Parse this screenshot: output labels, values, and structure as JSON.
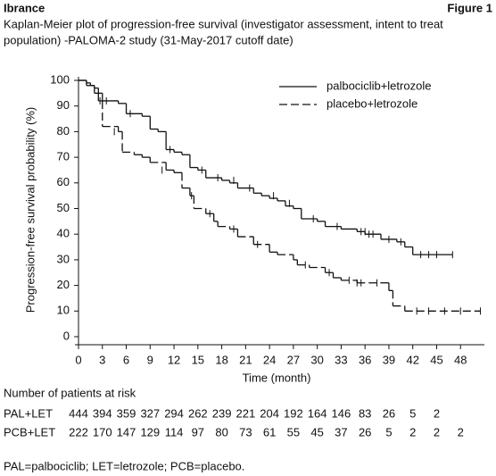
{
  "header": {
    "drug": "Ibrance",
    "figure": "Figure 1"
  },
  "chart_data": {
    "type": "km",
    "title": "Kaplan-Meier plot of progression-free survival (investigator assessment, intent to treat",
    "subtitle": "population) -PALOMA-2 study (31-May-2017 cutoff date)",
    "y_label": "Progression-free survival probability (%)",
    "x_label": "Time (month)",
    "xlim": [
      0,
      51
    ],
    "ylim": [
      0,
      100
    ],
    "xticks": [
      0,
      3,
      6,
      9,
      12,
      15,
      18,
      21,
      24,
      27,
      30,
      33,
      36,
      39,
      42,
      45,
      48
    ],
    "yticks": [
      0,
      10,
      20,
      30,
      40,
      50,
      60,
      70,
      80,
      90,
      100
    ],
    "legend": "upper right",
    "series": [
      {
        "name": "palbociclib+letrozole",
        "color": "#111111",
        "dash": false,
        "x": [
          0,
          1,
          1.5,
          2,
          2.5,
          3,
          5,
          6,
          8,
          9,
          10,
          11,
          12,
          13,
          14,
          15,
          16,
          18,
          19,
          20,
          22,
          23,
          24,
          25,
          26,
          27,
          28,
          30,
          31,
          33,
          35,
          36,
          38,
          40,
          41,
          42,
          47
        ],
        "values": [
          100,
          99,
          98,
          97,
          95,
          92,
          91,
          87,
          86,
          81,
          80,
          73,
          72,
          71,
          66,
          65,
          62,
          61,
          60,
          58,
          56,
          55,
          54,
          53,
          51,
          50,
          46,
          45,
          43,
          42,
          41,
          40,
          38,
          37,
          35,
          32,
          32
        ],
        "censored_x": [
          3.5,
          6.5,
          11.5,
          15.5,
          17.5,
          19.5,
          21.5,
          24.5,
          26.5,
          29.5,
          32.5,
          35.5,
          36,
          36.5,
          37,
          39,
          40.5,
          43,
          44,
          45,
          47
        ],
        "censored_values": [
          92,
          87,
          73,
          65,
          62,
          61,
          58,
          55,
          52,
          46,
          43,
          41,
          41,
          40,
          40,
          38,
          37,
          32,
          32,
          32,
          32
        ]
      },
      {
        "name": "placebo+letrozole",
        "color": "#111111",
        "dash": true,
        "x": [
          0,
          1,
          2,
          2.5,
          3,
          5,
          5.5,
          7,
          8,
          9,
          11,
          12,
          13,
          14,
          14.5,
          16,
          17,
          17.5,
          19,
          20,
          22,
          24,
          25,
          27,
          27.5,
          29,
          31,
          32,
          33,
          35,
          38,
          39,
          39.5,
          41,
          50.5
        ],
        "values": [
          100,
          98,
          95,
          92,
          82,
          80,
          72,
          71,
          70,
          68,
          65,
          64,
          58,
          55,
          50,
          48,
          45,
          43,
          42,
          39,
          36,
          33,
          32,
          30,
          28,
          27,
          25,
          23,
          22,
          21,
          21,
          18,
          12,
          10,
          10
        ],
        "censored_x": [
          2.7,
          4.5,
          10.5,
          14.2,
          16.5,
          19.5,
          22.5,
          28.5,
          31.5,
          34,
          35,
          35.5,
          37.5,
          42.5,
          44,
          46,
          48,
          50.5
        ],
        "censored_values": [
          92,
          80,
          65,
          55,
          48,
          42,
          36,
          28,
          25,
          22,
          21,
          21,
          21,
          10,
          10,
          10,
          10,
          10
        ]
      }
    ],
    "risk_table": {
      "title": "Number of patients at risk",
      "rows": [
        {
          "label": "PAL+LET",
          "values": [
            444,
            394,
            359,
            327,
            294,
            262,
            239,
            221,
            204,
            192,
            164,
            146,
            83,
            26,
            5,
            2
          ]
        },
        {
          "label": "PCB+LET",
          "values": [
            222,
            170,
            147,
            129,
            114,
            97,
            80,
            73,
            61,
            55,
            45,
            37,
            26,
            5,
            2,
            2,
            2
          ]
        }
      ]
    }
  },
  "footnote": "PAL=palbociclib; LET=letrozole; PCB=placebo."
}
